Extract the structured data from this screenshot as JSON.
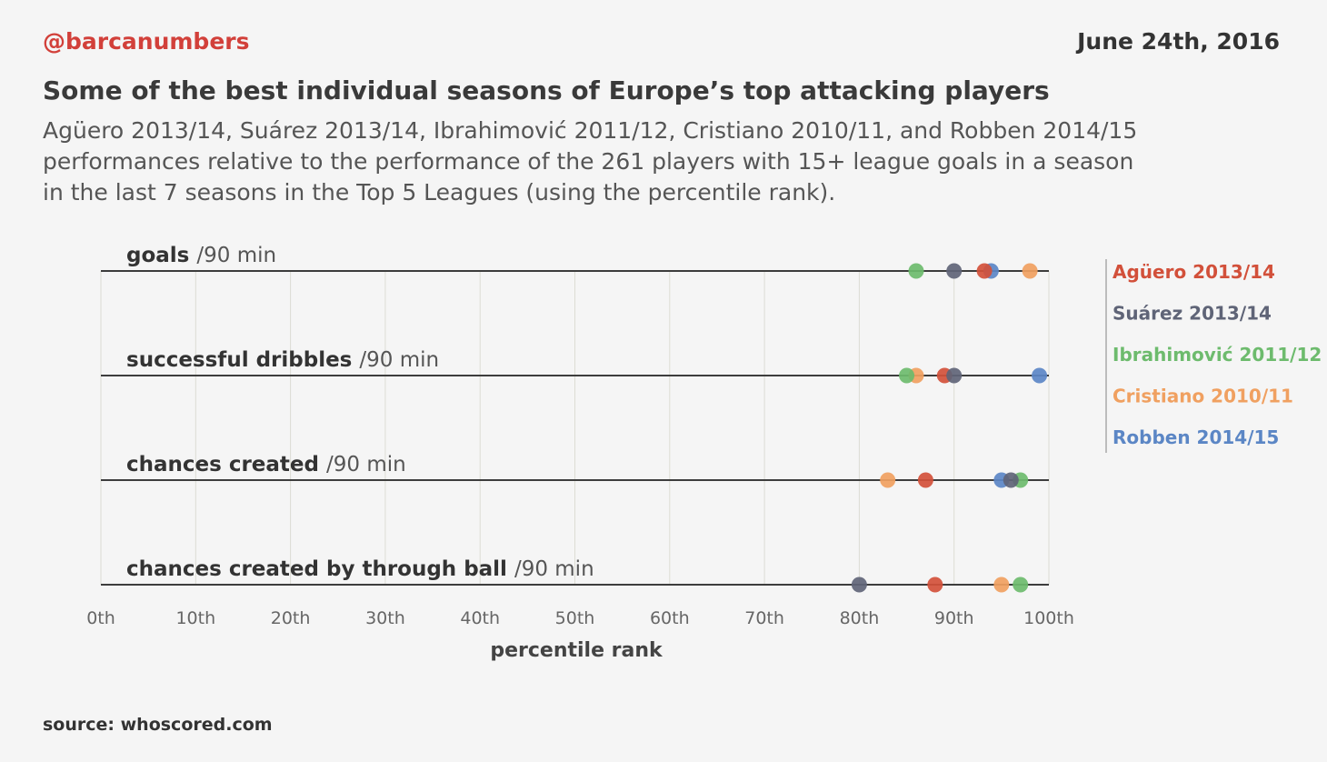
{
  "header": {
    "brand": "@barcanumbers",
    "date": "June 24th, 2016",
    "title": "Some of the best individual seasons of Europe’s top attacking players",
    "subtitle_lines": [
      "Agüero 2013/14, Suárez 2013/14, Ibrahimović 2011/12, Cristiano 2010/11, and Robben 2014/15",
      "performances relative to the performance of the 261 players with 15+ league goals in a season",
      "in the last 7 seasons in the Top 5 Leagues (using the percentile rank)."
    ]
  },
  "footer": {
    "source": "source: whoscored.com"
  },
  "chart_data": {
    "type": "scatter",
    "xlabel": "percentile rank",
    "xlim": [
      0,
      100
    ],
    "x_ticks": [
      0,
      10,
      20,
      30,
      40,
      50,
      60,
      70,
      80,
      90,
      100
    ],
    "x_tick_labels": [
      "0th",
      "10th",
      "20th",
      "30th",
      "40th",
      "50th",
      "60th",
      "70th",
      "80th",
      "90th",
      "100th"
    ],
    "grid": true,
    "legend_position": "right",
    "categories": [
      {
        "label": "goals",
        "unit": "/90 min"
      },
      {
        "label": "successful dribbles",
        "unit": "/90 min"
      },
      {
        "label": "chances created",
        "unit": "/90 min"
      },
      {
        "label": "chances created by through ball",
        "unit": "/90 min"
      }
    ],
    "series": [
      {
        "name": "Robben 2014/15",
        "color": "#5b86c5",
        "values": [
          93.9,
          99,
          95,
          null
        ]
      },
      {
        "name": "Cristiano 2010/11",
        "color": "#f0a060",
        "values": [
          98,
          86,
          83,
          95
        ]
      },
      {
        "name": "Ibrahimović 2011/12",
        "color": "#6dbb6d",
        "values": [
          86,
          85,
          97,
          97
        ]
      },
      {
        "name": "Agüero 2013/14",
        "color": "#d2503a",
        "values": [
          93.2,
          89,
          87,
          88
        ]
      },
      {
        "name": "Suárez 2013/14",
        "color": "#5f6477",
        "values": [
          90,
          90,
          96,
          80
        ]
      }
    ],
    "legend_order": [
      "Agüero 2013/14",
      "Suárez 2013/14",
      "Ibrahimović 2011/12",
      "Cristiano 2010/11",
      "Robben 2014/15"
    ]
  }
}
